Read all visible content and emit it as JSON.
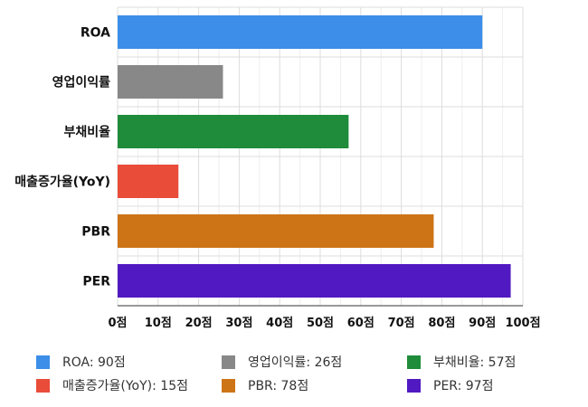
{
  "chart_data": {
    "type": "bar",
    "orientation": "horizontal",
    "categories": [
      "ROA",
      "영업이익률",
      "부채비율",
      "매출증가율(YoY)",
      "PBR",
      "PER"
    ],
    "values": [
      90,
      26,
      57,
      15,
      78,
      97
    ],
    "colors": [
      "#3c8ee8",
      "#888888",
      "#1e8c3a",
      "#ea4c3a",
      "#cd7417",
      "#5119c1"
    ],
    "xlim": [
      0,
      100
    ],
    "xticks": [
      "0점",
      "10점",
      "20점",
      "30점",
      "40점",
      "50점",
      "60점",
      "70점",
      "80점",
      "90점",
      "100점"
    ],
    "grid": true,
    "legend_position": "bottom",
    "legend": [
      {
        "label": "ROA: 90점",
        "color": "#3c8ee8"
      },
      {
        "label": "영업이익률: 26점",
        "color": "#888888"
      },
      {
        "label": "부채비율: 57점",
        "color": "#1e8c3a"
      },
      {
        "label": "매출증가율(YoY): 15점",
        "color": "#ea4c3a"
      },
      {
        "label": "PBR: 78점",
        "color": "#cd7417"
      },
      {
        "label": "PER: 97점",
        "color": "#5119c1"
      }
    ]
  }
}
